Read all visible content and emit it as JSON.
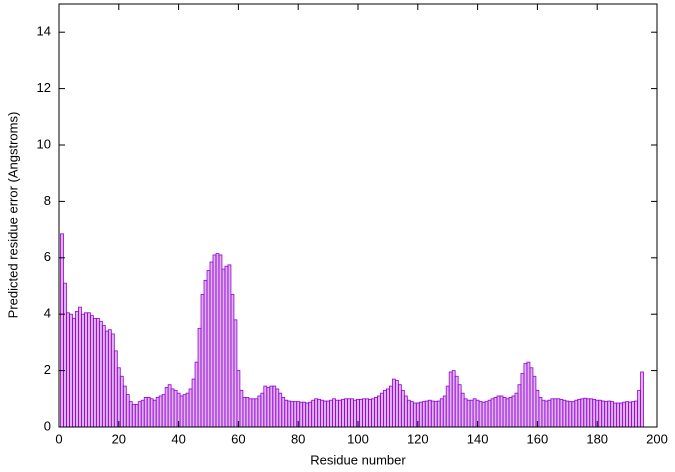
{
  "chart_data": {
    "type": "bar",
    "xlabel": "Residue number",
    "ylabel": "Predicted residue error (Angstroms)",
    "xlim": [
      0,
      200
    ],
    "xticks": [
      0,
      20,
      40,
      60,
      80,
      100,
      120,
      140,
      160,
      180,
      200
    ],
    "ylim": [
      0,
      15
    ],
    "yticks": [
      0,
      2,
      4,
      6,
      8,
      10,
      12,
      14
    ],
    "color": "#9400d3",
    "x": [
      1,
      2,
      3,
      4,
      5,
      6,
      7,
      8,
      9,
      10,
      11,
      12,
      13,
      14,
      15,
      16,
      17,
      18,
      19,
      20,
      21,
      22,
      23,
      24,
      25,
      26,
      27,
      28,
      29,
      30,
      31,
      32,
      33,
      34,
      35,
      36,
      37,
      38,
      39,
      40,
      41,
      42,
      43,
      44,
      45,
      46,
      47,
      48,
      49,
      50,
      51,
      52,
      53,
      54,
      55,
      56,
      57,
      58,
      59,
      60,
      61,
      62,
      63,
      64,
      65,
      66,
      67,
      68,
      69,
      70,
      71,
      72,
      73,
      74,
      75,
      76,
      77,
      78,
      79,
      80,
      81,
      82,
      83,
      84,
      85,
      86,
      87,
      88,
      89,
      90,
      91,
      92,
      93,
      94,
      95,
      96,
      97,
      98,
      99,
      100,
      101,
      102,
      103,
      104,
      105,
      106,
      107,
      108,
      109,
      110,
      111,
      112,
      113,
      114,
      115,
      116,
      117,
      118,
      119,
      120,
      121,
      122,
      123,
      124,
      125,
      126,
      127,
      128,
      129,
      130,
      131,
      132,
      133,
      134,
      135,
      136,
      137,
      138,
      139,
      140,
      141,
      142,
      143,
      144,
      145,
      146,
      147,
      148,
      149,
      150,
      151,
      152,
      153,
      154,
      155,
      156,
      157,
      158,
      159,
      160,
      161,
      162,
      163,
      164,
      165,
      166,
      167,
      168,
      169,
      170,
      171,
      172,
      173,
      174,
      175,
      176,
      177,
      178,
      179,
      180,
      181,
      182,
      183,
      184,
      185,
      186,
      187,
      188,
      189,
      190,
      191,
      192,
      193,
      194,
      195
    ],
    "values": [
      6.85,
      5.1,
      4.05,
      4.0,
      3.85,
      4.1,
      4.25,
      4.0,
      4.05,
      4.05,
      3.95,
      3.85,
      3.85,
      3.75,
      3.6,
      3.4,
      3.45,
      3.3,
      2.7,
      2.1,
      1.8,
      1.45,
      1.15,
      0.9,
      0.8,
      0.8,
      0.9,
      0.95,
      1.05,
      1.05,
      1.0,
      0.95,
      1.05,
      1.1,
      1.15,
      1.4,
      1.5,
      1.35,
      1.3,
      1.2,
      1.1,
      1.15,
      1.2,
      1.35,
      1.7,
      2.3,
      3.5,
      4.7,
      5.2,
      5.55,
      5.85,
      6.1,
      6.15,
      6.1,
      5.6,
      5.7,
      5.75,
      4.7,
      3.8,
      2.0,
      1.3,
      1.05,
      1.05,
      1.0,
      1.0,
      1.0,
      1.1,
      1.2,
      1.45,
      1.4,
      1.45,
      1.45,
      1.35,
      1.2,
      1.05,
      0.95,
      0.92,
      0.9,
      0.9,
      0.9,
      0.88,
      0.88,
      0.85,
      0.88,
      0.95,
      1.0,
      0.98,
      0.95,
      0.92,
      0.92,
      0.95,
      1.0,
      0.95,
      0.95,
      0.98,
      1.0,
      1.0,
      1.0,
      0.95,
      0.98,
      0.98,
      1.0,
      1.0,
      0.98,
      1.0,
      1.05,
      1.1,
      1.2,
      1.3,
      1.35,
      1.45,
      1.7,
      1.65,
      1.5,
      1.3,
      1.1,
      0.95,
      0.9,
      0.85,
      0.85,
      0.88,
      0.9,
      0.92,
      0.95,
      0.92,
      0.9,
      0.92,
      1.0,
      1.1,
      1.45,
      1.95,
      2.0,
      1.8,
      1.5,
      1.2,
      1.0,
      0.95,
      0.95,
      1.0,
      0.95,
      0.9,
      0.88,
      0.9,
      0.95,
      1.0,
      1.05,
      1.1,
      1.1,
      1.05,
      1.0,
      1.05,
      1.1,
      1.2,
      1.5,
      1.9,
      2.25,
      2.3,
      2.1,
      1.8,
      1.3,
      1.05,
      0.95,
      0.92,
      0.95,
      1.0,
      1.0,
      1.0,
      0.98,
      0.95,
      0.92,
      0.9,
      0.9,
      0.95,
      0.98,
      1.0,
      1.02,
      1.0,
      1.0,
      0.98,
      0.95,
      0.95,
      0.92,
      0.9,
      0.92,
      0.9,
      0.85,
      0.85,
      0.85,
      0.88,
      0.9,
      0.88,
      0.9,
      0.92,
      1.3,
      1.95
    ]
  }
}
